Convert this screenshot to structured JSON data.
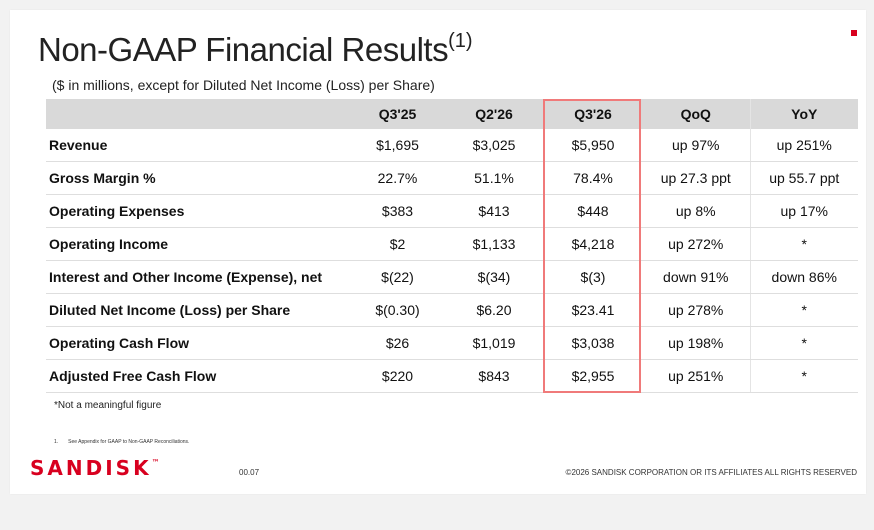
{
  "slide": {
    "title": "Non-GAAP Financial Results",
    "title_superscript": "(1)",
    "subtitle": "($ in millions, except for Diluted Net Income (Loss) per Share)",
    "accent_color": "#d8001f",
    "highlight_color": "#f07a7a"
  },
  "table": {
    "headers": [
      "",
      "Q3'25",
      "Q2'26",
      "Q3'26",
      "QoQ",
      "YoY"
    ],
    "highlighted_column": "Q3'26",
    "rows": [
      {
        "label": "Revenue",
        "values": [
          "$1,695",
          "$3,025",
          "$5,950",
          "up 97%",
          "up 251%"
        ]
      },
      {
        "label": "Gross Margin %",
        "values": [
          "22.7%",
          "51.1%",
          "78.4%",
          "up 27.3 ppt",
          "up 55.7 ppt"
        ]
      },
      {
        "label": "Operating Expenses",
        "values": [
          "$383",
          "$413",
          "$448",
          "up 8%",
          "up 17%"
        ]
      },
      {
        "label": "Operating Income",
        "values": [
          "$2",
          "$1,133",
          "$4,218",
          "up 272%",
          "*"
        ]
      },
      {
        "label": "Interest and Other Income (Expense), net",
        "values": [
          "$(22)",
          "$(34)",
          "$(3)",
          "down 91%",
          "down 86%"
        ]
      },
      {
        "label": "Diluted Net Income (Loss) per Share",
        "values": [
          "$(0.30)",
          "$6.20",
          "$23.41",
          "up 278%",
          "*"
        ]
      },
      {
        "label": "Operating Cash Flow",
        "values": [
          "$26",
          "$1,019",
          "$3,038",
          "up 198%",
          "*"
        ]
      },
      {
        "label": "Adjusted Free Cash Flow",
        "values": [
          "$220",
          "$843",
          "$2,955",
          "up 251%",
          "*"
        ]
      }
    ]
  },
  "notes": {
    "not_meaningful": "*Not a meaningful figure",
    "footnote_number": "1.",
    "footnote_text": "See Appendix for GAAP to Non-GAAP Reconciliations."
  },
  "footer": {
    "logo_text": "SANDISK",
    "logo_mark": "™",
    "page_number": "00.07",
    "copyright": "©2026 SANDISK CORPORATION OR ITS AFFILIATES ALL RIGHTS RESERVED"
  }
}
